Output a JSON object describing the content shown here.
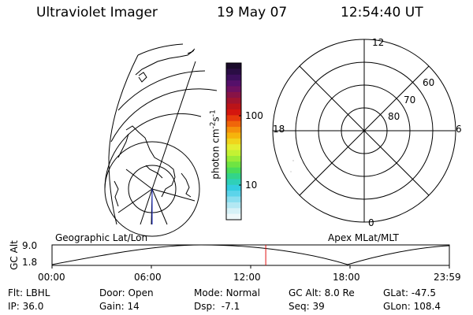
{
  "header": {
    "instrument": "Ultraviolet Imager",
    "date": "19 May 07",
    "time": "12:54:40 UT"
  },
  "colorbar": {
    "label": "photon cm",
    "label_exp1": "-2",
    "label_mid": "s",
    "label_exp2": "-1",
    "ticks": [
      "100",
      "10"
    ],
    "colors": [
      "#1a0a2a",
      "#2a0d44",
      "#3d0f5c",
      "#55106a",
      "#6e1160",
      "#881346",
      "#a1142e",
      "#bb1418",
      "#d4160e",
      "#e63a0c",
      "#f0650a",
      "#f5900b",
      "#f6b40c",
      "#f0d41c",
      "#e4ee32",
      "#c4f233",
      "#9aec38",
      "#6fe442",
      "#49dc5a",
      "#33d48a",
      "#2fd0b8",
      "#34cde0",
      "#5cd4ea",
      "#8adeef",
      "#b3e8f3",
      "#d6f1f7",
      "#eef8fa"
    ]
  },
  "polar": {
    "mlt_labels": {
      "top": "12",
      "left": "18",
      "right": "6",
      "bottom": "0"
    },
    "lat_labels": [
      "60",
      "70",
      "80"
    ]
  },
  "timeline": {
    "left_label": "Geographic Lat/Lon",
    "right_label": "Apex MLat/MLT",
    "axis_label": "GC Alt",
    "y_ticks": [
      "9.0",
      "1.8"
    ],
    "x_ticks": [
      "00:00",
      "06:00",
      "12:00",
      "18:00",
      "23:59"
    ],
    "current_time_hours": 12.91
  },
  "footer": {
    "row1": [
      {
        "key": "Flt:",
        "value": "LBHL"
      },
      {
        "key": "Door:",
        "value": "Open"
      },
      {
        "key": "Mode:",
        "value": "Normal"
      },
      {
        "key": "GC Alt:",
        "value": "8.0 Re"
      },
      {
        "key": "GLat:",
        "value": "-47.5"
      }
    ],
    "row2": [
      {
        "key": "IP:",
        "value": "36.0"
      },
      {
        "key": "Gain:",
        "value": "14"
      },
      {
        "key": "Dsp:",
        "value": "-7.1"
      },
      {
        "key": "Seq:",
        "value": "39"
      },
      {
        "key": "GLon:",
        "value": "108.4"
      }
    ]
  }
}
